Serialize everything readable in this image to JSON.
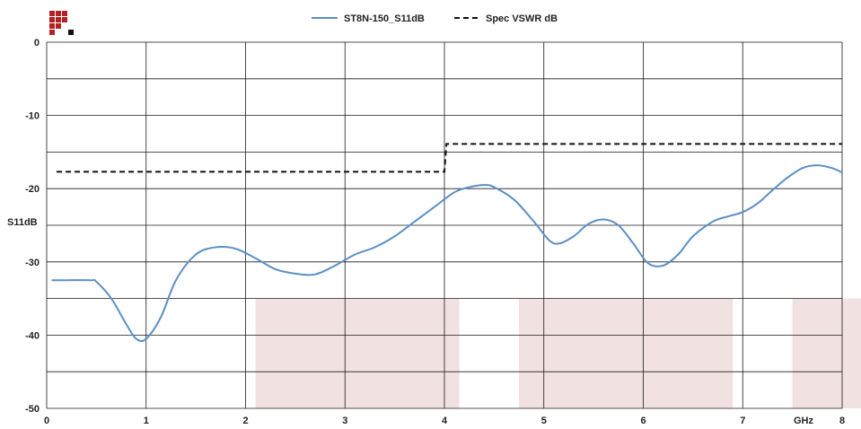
{
  "chart_data": {
    "type": "line",
    "ylabel": "S11dB",
    "xunit": "GHz",
    "xlim": [
      0,
      8
    ],
    "ylim": [
      -50,
      0
    ],
    "x_ticks": [
      "0",
      "1",
      "2",
      "3",
      "4",
      "5",
      "6",
      "7",
      "8"
    ],
    "y_ticks": [
      "0",
      "-10",
      "-20",
      "-30",
      "-40",
      "-50"
    ],
    "grid": true,
    "legend_position": "top-center",
    "series": [
      {
        "name": "ST8N-150_S11dB",
        "style": "solid",
        "color": "#5b8fc7",
        "x": [
          0.05,
          0.2,
          0.45,
          0.5,
          0.65,
          0.8,
          0.9,
          1.0,
          1.15,
          1.3,
          1.5,
          1.7,
          1.9,
          2.1,
          2.3,
          2.5,
          2.7,
          2.9,
          3.1,
          3.3,
          3.5,
          3.7,
          3.9,
          4.1,
          4.25,
          4.4,
          4.5,
          4.7,
          4.9,
          5.05,
          5.15,
          5.3,
          5.45,
          5.6,
          5.75,
          5.9,
          6.05,
          6.2,
          6.35,
          6.5,
          6.7,
          6.85,
          7.0,
          7.15,
          7.3,
          7.45,
          7.6,
          7.75,
          7.9,
          8.0
        ],
        "values": [
          -32.5,
          -32.5,
          -32.5,
          -32.7,
          -35,
          -38.5,
          -40.5,
          -40.5,
          -37.5,
          -32.5,
          -29,
          -28,
          -28.2,
          -29.5,
          -31,
          -31.6,
          -31.7,
          -30.5,
          -29,
          -28,
          -26.5,
          -24.5,
          -22.5,
          -20.5,
          -19.8,
          -19.5,
          -19.8,
          -21.5,
          -24.5,
          -27,
          -27.5,
          -26.5,
          -24.8,
          -24.2,
          -25,
          -27.5,
          -30.2,
          -30.5,
          -29,
          -26.5,
          -24.5,
          -23.8,
          -23.2,
          -22,
          -20.2,
          -18.5,
          -17.2,
          -16.8,
          -17.2,
          -17.8
        ]
      },
      {
        "name": "Spec VSWR dB",
        "style": "dashed",
        "color": "#111111",
        "x": [
          0.1,
          4.0,
          4.02,
          8.0
        ],
        "values": [
          -17.7,
          -17.7,
          -13.9,
          -13.9
        ]
      }
    ],
    "shaded_bands": [
      {
        "x": [
          2.1,
          4.15
        ],
        "y": [
          -50,
          -35
        ],
        "color": "#f2e1e1"
      },
      {
        "x": [
          4.75,
          6.9
        ],
        "y": [
          -50,
          -35
        ],
        "color": "#f2e1e1"
      },
      {
        "x": [
          7.5,
          8.3
        ],
        "y": [
          -50,
          -35
        ],
        "color": "#f2e1e1"
      }
    ]
  }
}
